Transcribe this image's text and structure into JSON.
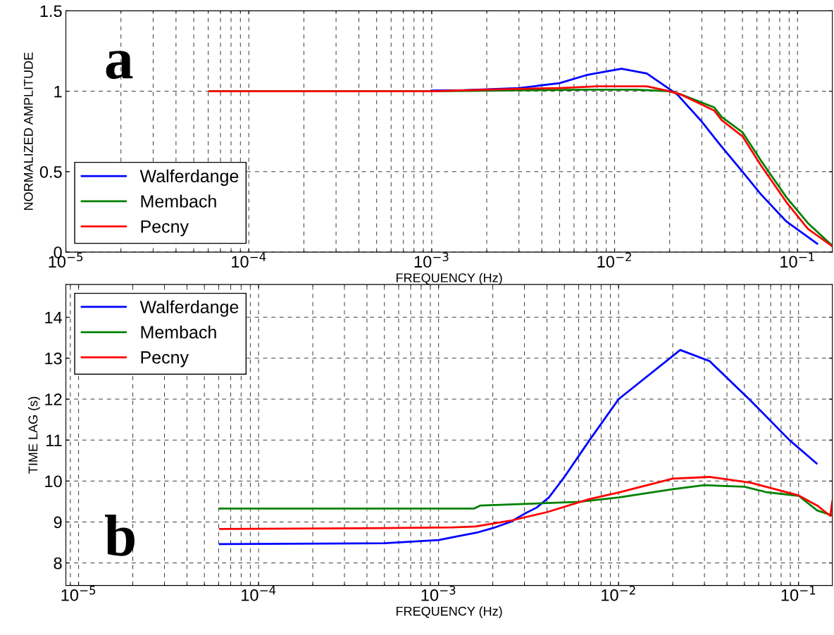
{
  "chart_data": [
    {
      "type": "line",
      "xlabel": "FREQUENCY (Hz)",
      "ylabel": "NORMALIZED AMPLITUDE",
      "annotations": [
        "a"
      ],
      "log": "x",
      "grid": true,
      "legend": "bottom left",
      "xlim": [
        1e-05,
        0.155
      ],
      "ylim": [
        0,
        1.5
      ],
      "xticks": [
        {
          "value": 1e-05,
          "label": "10$^{−5}$"
        },
        {
          "value": 0.0001,
          "label": "10$^{−4}$"
        },
        {
          "value": 0.001,
          "label": "10$^{−3}$"
        },
        {
          "value": 0.01,
          "label": "10$^{−2}$"
        },
        {
          "value": 0.1,
          "label": "10$^{−1}$"
        }
      ],
      "yticks": [
        0,
        0.5,
        1,
        1.5
      ],
      "series": [
        {
          "name": "Walferdange",
          "color": "#0000ff",
          "x": [
            0.001,
            0.0015,
            0.003,
            0.005,
            0.007,
            0.0109,
            0.015,
            0.022,
            0.0295,
            0.0385,
            0.05,
            0.063,
            0.087,
            0.128
          ],
          "values": [
            1.004,
            1.006,
            1.02,
            1.05,
            1.1,
            1.14,
            1.11,
            0.98,
            0.82,
            0.655,
            0.5,
            0.36,
            0.19,
            0.053
          ]
        },
        {
          "name": "Membach",
          "color": "#008000",
          "x": [
            6.1e-05,
            0.0001,
            0.001,
            0.007,
            0.013,
            0.02,
            0.023,
            0.035,
            0.0385,
            0.05,
            0.063,
            0.087,
            0.114,
            0.155
          ],
          "values": [
            1.0,
            1.0,
            1.0,
            1.01,
            1.01,
            1.0,
            0.98,
            0.9,
            0.84,
            0.745,
            0.57,
            0.34,
            0.18,
            0.04
          ]
        },
        {
          "name": "Pecny",
          "color": "#ff0000",
          "x": [
            6.1e-05,
            0.0001,
            0.001,
            0.002,
            0.005,
            0.008,
            0.015,
            0.02,
            0.023,
            0.035,
            0.0385,
            0.05,
            0.063,
            0.087,
            0.114,
            0.155
          ],
          "values": [
            1.0,
            1.0,
            1.0,
            1.01,
            1.02,
            1.03,
            1.03,
            1.0,
            0.98,
            0.88,
            0.82,
            0.72,
            0.54,
            0.31,
            0.144,
            0.036
          ]
        }
      ]
    },
    {
      "type": "line",
      "xlabel": "FREQUENCY (Hz)",
      "ylabel": "TIME LAG (s)",
      "annotations": [
        "b"
      ],
      "log": "x",
      "grid": true,
      "legend": "top left",
      "xlim": [
        8.5e-06,
        0.154
      ],
      "ylim": [
        7.45,
        14.8
      ],
      "xticks": [
        {
          "value": 1e-05,
          "label": "10$^{−5}$"
        },
        {
          "value": 0.0001,
          "label": "10$^{−4}$"
        },
        {
          "value": 0.001,
          "label": "10$^{−3}$"
        },
        {
          "value": 0.01,
          "label": "10$^{−2}$"
        },
        {
          "value": 0.1,
          "label": "10$^{−1}$"
        }
      ],
      "yticks": [
        8,
        9,
        10,
        11,
        12,
        13,
        14
      ],
      "series": [
        {
          "name": "Walferdange",
          "color": "#0000ff",
          "x": [
            6.1e-05,
            0.0005,
            0.001,
            0.00166,
            0.002,
            0.0025,
            0.003,
            0.0035,
            0.0041,
            0.005,
            0.0069,
            0.01,
            0.022,
            0.032,
            0.054,
            0.089,
            0.126
          ],
          "values": [
            8.46,
            8.48,
            8.56,
            8.75,
            8.85,
            9.0,
            9.2,
            9.35,
            9.6,
            10.1,
            11.0,
            12.0,
            13.2,
            12.93,
            11.97,
            11.0,
            10.43
          ]
        },
        {
          "name": "Membach",
          "color": "#008000",
          "x": [
            6.1e-05,
            0.00158,
            0.0017,
            0.006,
            0.01,
            0.02,
            0.03,
            0.05,
            0.066,
            0.1,
            0.127,
            0.154
          ],
          "values": [
            9.33,
            9.33,
            9.4,
            9.49,
            9.6,
            9.8,
            9.9,
            9.86,
            9.73,
            9.64,
            9.28,
            9.16
          ]
        },
        {
          "name": "Pecny",
          "color": "#ff0000",
          "x": [
            6.1e-05,
            0.0005,
            0.0012,
            0.0016,
            0.0025,
            0.004,
            0.0069,
            0.01,
            0.02,
            0.032,
            0.054,
            0.1,
            0.127,
            0.15,
            0.154
          ],
          "values": [
            8.83,
            8.85,
            8.87,
            8.89,
            9.03,
            9.24,
            9.56,
            9.72,
            10.06,
            10.1,
            9.96,
            9.65,
            9.4,
            9.15,
            9.5
          ]
        }
      ]
    }
  ]
}
